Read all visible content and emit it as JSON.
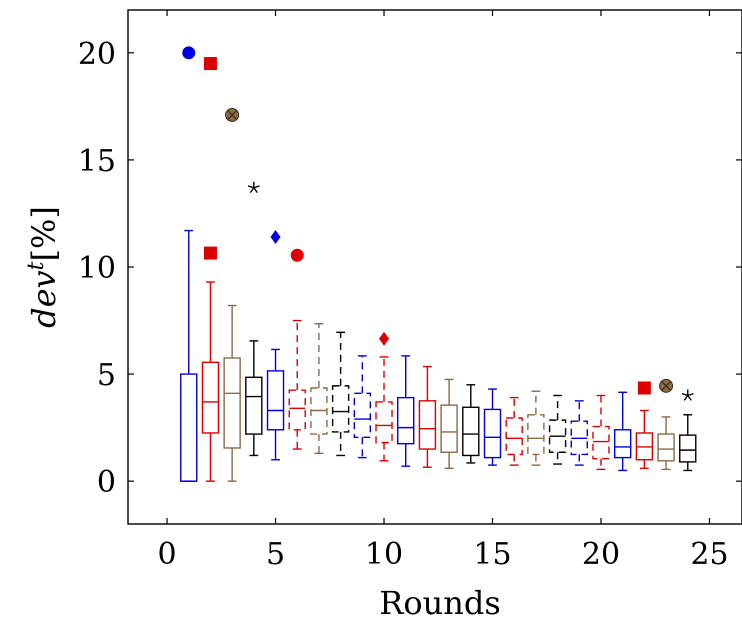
{
  "chart_data": {
    "type": "box",
    "xlabel": "Rounds",
    "ylabel": "dev^t[%]",
    "xlim": [
      -1.8,
      26.5
    ],
    "ylim": [
      -2,
      22
    ],
    "xticks": [
      0,
      5,
      10,
      15,
      20,
      25
    ],
    "yticks": [
      0,
      5,
      10,
      15,
      20
    ],
    "grid": false,
    "palette": [
      "#0000dd",
      "#dd0000",
      "#8b6a45",
      "#000000"
    ],
    "boxes": [
      {
        "x": 1,
        "whisker_low": 0,
        "q1": 0,
        "median": 0,
        "q3": 5.0,
        "whisker_high": 11.7,
        "color": "#0000dd",
        "dash": false,
        "outlier": {
          "y": 20.0,
          "marker": "circle"
        }
      },
      {
        "x": 2,
        "whisker_low": 0,
        "q1": 2.25,
        "median": 3.7,
        "q3": 5.55,
        "whisker_high": 9.3,
        "color": "#dd0000",
        "dash": false,
        "outlier": {
          "y": 19.5,
          "marker": "square"
        },
        "outlier2": {
          "y": 10.65,
          "marker": "square"
        }
      },
      {
        "x": 3,
        "whisker_low": 0,
        "q1": 1.55,
        "median": 4.1,
        "q3": 5.75,
        "whisker_high": 8.2,
        "color": "#8b6a45",
        "dash": false,
        "outlier": {
          "y": 17.1,
          "marker": "circle-x"
        }
      },
      {
        "x": 4,
        "whisker_low": 1.2,
        "q1": 2.2,
        "median": 3.95,
        "q3": 4.85,
        "whisker_high": 6.55,
        "color": "#000000",
        "dash": false,
        "outlier": {
          "y": 13.7,
          "marker": "star"
        }
      },
      {
        "x": 5,
        "whisker_low": 1.0,
        "q1": 2.4,
        "median": 3.3,
        "q3": 5.15,
        "whisker_high": 6.15,
        "color": "#0000dd",
        "dash": false,
        "outlier": {
          "y": 11.4,
          "marker": "diamond"
        }
      },
      {
        "x": 6,
        "whisker_low": 1.5,
        "q1": 2.4,
        "median": 3.4,
        "q3": 4.25,
        "whisker_high": 7.5,
        "color": "#dd0000",
        "dash": true,
        "outlier": {
          "y": 10.55,
          "marker": "circle"
        }
      },
      {
        "x": 7,
        "whisker_low": 1.3,
        "q1": 2.2,
        "median": 3.3,
        "q3": 4.35,
        "whisker_high": 7.35,
        "color": "#8b6a45",
        "dash": true
      },
      {
        "x": 8,
        "whisker_low": 1.2,
        "q1": 2.3,
        "median": 3.25,
        "q3": 4.45,
        "whisker_high": 6.95,
        "color": "#000000",
        "dash": true
      },
      {
        "x": 9,
        "whisker_low": 1.1,
        "q1": 2.05,
        "median": 2.9,
        "q3": 4.1,
        "whisker_high": 5.85,
        "color": "#0000dd",
        "dash": true
      },
      {
        "x": 10,
        "whisker_low": 0.95,
        "q1": 1.8,
        "median": 2.6,
        "q3": 3.7,
        "whisker_high": 5.8,
        "color": "#dd0000",
        "dash": true,
        "outlier": {
          "y": 6.65,
          "marker": "diamond"
        }
      },
      {
        "x": 11,
        "whisker_low": 0.7,
        "q1": 1.75,
        "median": 2.5,
        "q3": 3.9,
        "whisker_high": 5.85,
        "color": "#0000dd",
        "dash": false
      },
      {
        "x": 12,
        "whisker_low": 0.65,
        "q1": 1.5,
        "median": 2.45,
        "q3": 3.75,
        "whisker_high": 5.35,
        "color": "#dd0000",
        "dash": false
      },
      {
        "x": 13,
        "whisker_low": 0.6,
        "q1": 1.35,
        "median": 2.3,
        "q3": 3.55,
        "whisker_high": 4.75,
        "color": "#8b6a45",
        "dash": false
      },
      {
        "x": 14,
        "whisker_low": 0.85,
        "q1": 1.2,
        "median": 2.2,
        "q3": 3.45,
        "whisker_high": 4.5,
        "color": "#000000",
        "dash": false
      },
      {
        "x": 15,
        "whisker_low": 0.75,
        "q1": 1.1,
        "median": 2.05,
        "q3": 3.35,
        "whisker_high": 4.3,
        "color": "#0000dd",
        "dash": false
      },
      {
        "x": 16,
        "whisker_low": 0.75,
        "q1": 1.25,
        "median": 2.0,
        "q3": 2.95,
        "whisker_high": 3.9,
        "color": "#dd0000",
        "dash": true
      },
      {
        "x": 17,
        "whisker_low": 0.75,
        "q1": 1.25,
        "median": 2.0,
        "q3": 3.1,
        "whisker_high": 4.2,
        "color": "#8b6a45",
        "dash": true
      },
      {
        "x": 18,
        "whisker_low": 0.8,
        "q1": 1.35,
        "median": 2.1,
        "q3": 2.85,
        "whisker_high": 4.0,
        "color": "#000000",
        "dash": true
      },
      {
        "x": 19,
        "whisker_low": 0.75,
        "q1": 1.25,
        "median": 2.0,
        "q3": 2.8,
        "whisker_high": 3.75,
        "color": "#0000dd",
        "dash": true
      },
      {
        "x": 20,
        "whisker_low": 0.55,
        "q1": 1.05,
        "median": 1.85,
        "q3": 2.55,
        "whisker_high": 4.0,
        "color": "#dd0000",
        "dash": true
      },
      {
        "x": 21,
        "whisker_low": 0.5,
        "q1": 1.1,
        "median": 1.6,
        "q3": 2.4,
        "whisker_high": 4.15,
        "color": "#0000dd",
        "dash": false
      },
      {
        "x": 22,
        "whisker_low": 0.6,
        "q1": 1.0,
        "median": 1.6,
        "q3": 2.25,
        "whisker_high": 3.3,
        "color": "#dd0000",
        "dash": false,
        "outlier": {
          "y": 4.35,
          "marker": "square"
        }
      },
      {
        "x": 23,
        "whisker_low": 0.55,
        "q1": 0.95,
        "median": 1.5,
        "q3": 2.2,
        "whisker_high": 3.0,
        "color": "#8b6a45",
        "dash": false,
        "outlier": {
          "y": 4.45,
          "marker": "circle-x"
        }
      },
      {
        "x": 24,
        "whisker_low": 0.5,
        "q1": 0.9,
        "median": 1.45,
        "q3": 2.15,
        "whisker_high": 3.1,
        "color": "#000000",
        "dash": false,
        "outlier": {
          "y": 4.0,
          "marker": "star"
        }
      }
    ]
  }
}
